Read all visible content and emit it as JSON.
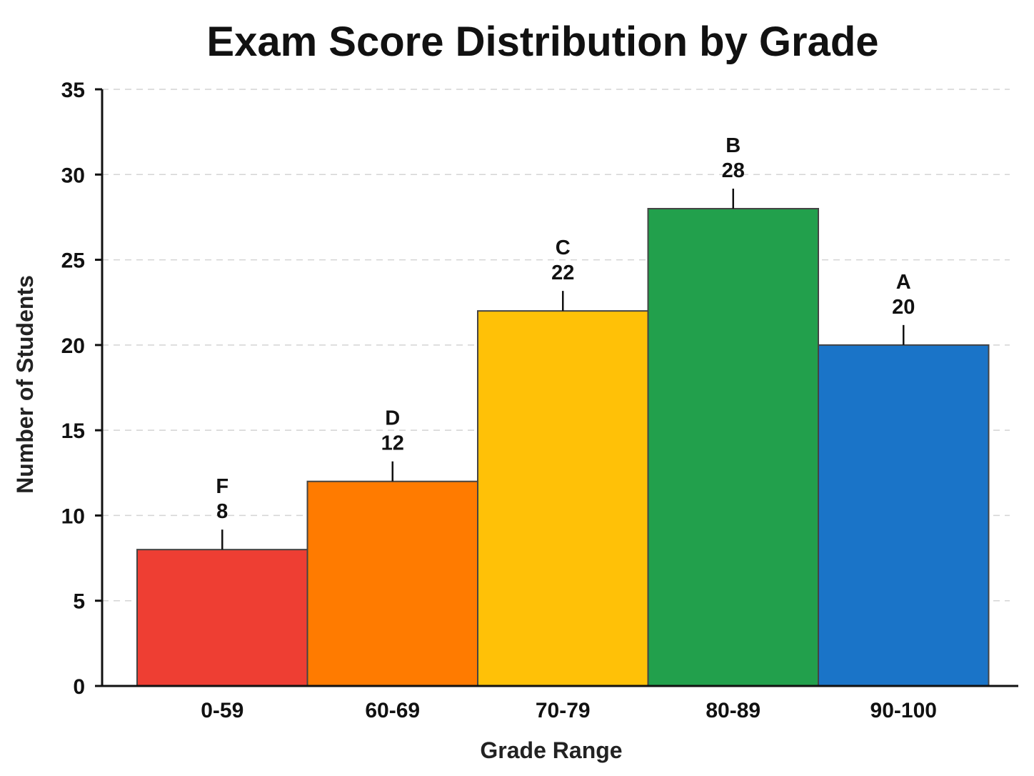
{
  "chart_data": {
    "type": "bar",
    "title": "Exam Score Distribution by Grade",
    "xlabel": "Grade Range",
    "ylabel": "Number of Students",
    "categories": [
      "0-59",
      "60-69",
      "70-79",
      "80-89",
      "90-100"
    ],
    "grades": [
      "F",
      "D",
      "C",
      "B",
      "A"
    ],
    "values": [
      8,
      12,
      22,
      28,
      20
    ],
    "colors": [
      "#ee3e33",
      "#ff7b00",
      "#ffc107",
      "#22a04c",
      "#1a74c8"
    ],
    "ylim": [
      0,
      35
    ],
    "yticks": [
      0,
      5,
      10,
      15,
      20,
      25,
      30,
      35
    ],
    "grid": true,
    "legend": "none"
  }
}
